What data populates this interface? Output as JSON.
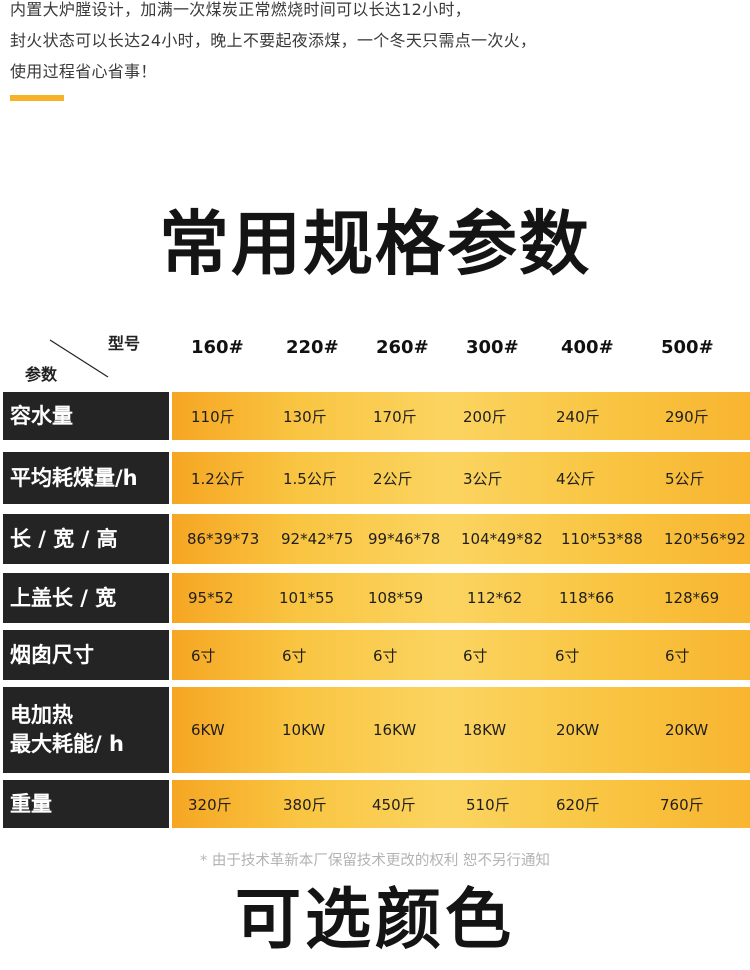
{
  "intro": {
    "lines": [
      "内置大炉膛设计，加满一次煤炭正常燃烧时间可以长达12小时，",
      "封火状态可以长达24小时，晚上不要起夜添煤，一个冬天只需点一次火，",
      "使用过程省心省事！"
    ]
  },
  "section_title": "常用规格参数",
  "table": {
    "corner_model": "型号",
    "corner_param": "参数",
    "columns": [
      "160#",
      "220#",
      "260#",
      "300#",
      "400#",
      "500#"
    ],
    "rows": [
      {
        "label": "容水量",
        "values": [
          "110斤",
          "130斤",
          "170斤",
          "200斤",
          "240斤",
          "290斤"
        ]
      },
      {
        "label": "平均耗煤量/h",
        "values": [
          "1.2公斤",
          "1.5公斤",
          "2公斤",
          "3公斤",
          "4公斤",
          "5公斤"
        ]
      },
      {
        "label": "长 / 宽 / 高",
        "values": [
          "86*39*73",
          "92*42*75",
          "99*46*78",
          "104*49*82",
          "110*53*88",
          "120*56*92"
        ]
      },
      {
        "label": "上盖长 / 宽",
        "values": [
          "95*52",
          "101*55",
          "108*59",
          "112*62",
          "118*66",
          "128*69"
        ]
      },
      {
        "label": "烟囱尺寸",
        "values": [
          "6寸",
          "6寸",
          "6寸",
          "6寸",
          "6寸",
          "6寸"
        ]
      },
      {
        "label_lines": [
          "电加热",
          "最大耗能/ h"
        ],
        "values": [
          "6KW",
          "10KW",
          "16KW",
          "18KW",
          "20KW",
          "20KW"
        ]
      },
      {
        "label": "重量",
        "values": [
          "320斤",
          "380斤",
          "450斤",
          "510斤",
          "620斤",
          "760斤"
        ]
      }
    ]
  },
  "note": "* 由于技术革新本厂保留技术更改的权利 恕不另行通知",
  "colors_title": "可选颜色",
  "colors": {
    "accent": "#f6b228",
    "label_bg": "#242424",
    "band": "#f9c542"
  }
}
